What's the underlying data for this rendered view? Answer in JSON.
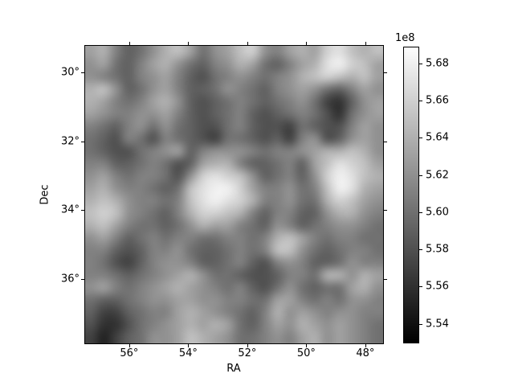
{
  "figure": {
    "background": "#ffffff",
    "border_color": "#000000"
  },
  "chart_data": {
    "type": "heatmap",
    "title": "",
    "xlabel": "RA",
    "ylabel": "Dec",
    "colormap": "gray",
    "grid_on": false,
    "x_range_deg": [
      57.52,
      47.37
    ],
    "y_range_deg": [
      29.21,
      37.89
    ],
    "x_ticks": [
      {
        "value": 56,
        "label": "56°"
      },
      {
        "value": 54,
        "label": "54°"
      },
      {
        "value": 52,
        "label": "52°"
      },
      {
        "value": 50,
        "label": "50°"
      },
      {
        "value": 48,
        "label": "48°"
      }
    ],
    "y_ticks": [
      {
        "value": 30,
        "label": "30°"
      },
      {
        "value": 32,
        "label": "32°"
      },
      {
        "value": 34,
        "label": "34°"
      },
      {
        "value": 36,
        "label": "36°"
      }
    ],
    "colorbar": {
      "offset_label": "1e8",
      "vmin_1e8": 5.5295,
      "vmax_1e8": 5.689,
      "ticks": [
        {
          "value": 5.68,
          "label": "5.68"
        },
        {
          "value": 5.66,
          "label": "5.66"
        },
        {
          "value": 5.64,
          "label": "5.64"
        },
        {
          "value": 5.62,
          "label": "5.62"
        },
        {
          "value": 5.6,
          "label": "5.60"
        },
        {
          "value": 5.58,
          "label": "5.58"
        },
        {
          "value": 5.56,
          "label": "5.56"
        },
        {
          "value": 5.54,
          "label": "5.54"
        }
      ]
    },
    "grid_rows": 24,
    "grid_cols": 24,
    "values_1e8": [
      [
        5.63,
        5.64,
        5.61,
        5.59,
        5.6,
        5.62,
        5.64,
        5.65,
        5.63,
        5.6,
        5.62,
        5.63,
        5.65,
        5.66,
        5.62,
        5.61,
        5.63,
        5.64,
        5.63,
        5.66,
        5.67,
        5.65,
        5.64,
        5.65
      ],
      [
        5.62,
        5.63,
        5.6,
        5.59,
        5.61,
        5.63,
        5.64,
        5.62,
        5.6,
        5.59,
        5.61,
        5.62,
        5.64,
        5.63,
        5.6,
        5.59,
        5.61,
        5.63,
        5.64,
        5.67,
        5.68,
        5.66,
        5.65,
        5.63
      ],
      [
        5.62,
        5.61,
        5.6,
        5.59,
        5.61,
        5.62,
        5.63,
        5.61,
        5.59,
        5.58,
        5.6,
        5.61,
        5.62,
        5.61,
        5.6,
        5.61,
        5.62,
        5.64,
        5.65,
        5.66,
        5.65,
        5.64,
        5.65,
        5.63
      ],
      [
        5.64,
        5.65,
        5.62,
        5.59,
        5.6,
        5.62,
        5.63,
        5.61,
        5.59,
        5.59,
        5.6,
        5.62,
        5.61,
        5.6,
        5.59,
        5.61,
        5.62,
        5.63,
        5.62,
        5.6,
        5.59,
        5.61,
        5.63,
        5.62
      ],
      [
        5.64,
        5.63,
        5.61,
        5.6,
        5.61,
        5.63,
        5.64,
        5.62,
        5.59,
        5.58,
        5.59,
        5.6,
        5.61,
        5.6,
        5.59,
        5.6,
        5.61,
        5.62,
        5.6,
        5.57,
        5.56,
        5.59,
        5.62,
        5.63
      ],
      [
        5.63,
        5.62,
        5.61,
        5.61,
        5.62,
        5.62,
        5.63,
        5.61,
        5.59,
        5.58,
        5.59,
        5.6,
        5.61,
        5.59,
        5.58,
        5.59,
        5.6,
        5.61,
        5.6,
        5.58,
        5.56,
        5.6,
        5.62,
        5.63
      ],
      [
        5.61,
        5.6,
        5.59,
        5.61,
        5.62,
        5.6,
        5.62,
        5.6,
        5.59,
        5.58,
        5.58,
        5.6,
        5.61,
        5.59,
        5.58,
        5.58,
        5.57,
        5.6,
        5.59,
        5.58,
        5.58,
        5.61,
        5.63,
        5.62
      ],
      [
        5.6,
        5.59,
        5.58,
        5.61,
        5.6,
        5.58,
        5.61,
        5.6,
        5.59,
        5.58,
        5.57,
        5.6,
        5.6,
        5.59,
        5.58,
        5.59,
        5.57,
        5.61,
        5.62,
        5.58,
        5.59,
        5.62,
        5.63,
        5.62
      ],
      [
        5.6,
        5.59,
        5.58,
        5.58,
        5.6,
        5.61,
        5.62,
        5.63,
        5.59,
        5.61,
        5.62,
        5.62,
        5.62,
        5.61,
        5.6,
        5.61,
        5.61,
        5.62,
        5.63,
        5.64,
        5.64,
        5.65,
        5.64,
        5.62
      ],
      [
        5.61,
        5.61,
        5.59,
        5.59,
        5.6,
        5.61,
        5.6,
        5.58,
        5.59,
        5.63,
        5.64,
        5.64,
        5.61,
        5.59,
        5.59,
        5.6,
        5.61,
        5.59,
        5.63,
        5.65,
        5.67,
        5.66,
        5.65,
        5.63
      ],
      [
        5.62,
        5.63,
        5.61,
        5.6,
        5.61,
        5.61,
        5.6,
        5.58,
        5.62,
        5.66,
        5.67,
        5.66,
        5.65,
        5.62,
        5.59,
        5.6,
        5.61,
        5.59,
        5.62,
        5.66,
        5.68,
        5.67,
        5.65,
        5.64
      ],
      [
        5.63,
        5.64,
        5.62,
        5.61,
        5.61,
        5.6,
        5.59,
        5.6,
        5.65,
        5.67,
        5.68,
        5.68,
        5.66,
        5.63,
        5.61,
        5.61,
        5.62,
        5.6,
        5.61,
        5.65,
        5.68,
        5.67,
        5.64,
        5.63
      ],
      [
        5.64,
        5.65,
        5.64,
        5.62,
        5.61,
        5.61,
        5.6,
        5.61,
        5.65,
        5.67,
        5.68,
        5.67,
        5.66,
        5.64,
        5.61,
        5.61,
        5.62,
        5.6,
        5.6,
        5.64,
        5.66,
        5.65,
        5.63,
        5.62
      ],
      [
        5.65,
        5.66,
        5.65,
        5.62,
        5.61,
        5.6,
        5.59,
        5.61,
        5.64,
        5.66,
        5.66,
        5.65,
        5.64,
        5.61,
        5.59,
        5.61,
        5.61,
        5.59,
        5.59,
        5.62,
        5.64,
        5.64,
        5.62,
        5.61
      ],
      [
        5.64,
        5.65,
        5.63,
        5.61,
        5.6,
        5.6,
        5.59,
        5.6,
        5.62,
        5.64,
        5.63,
        5.63,
        5.61,
        5.6,
        5.59,
        5.62,
        5.61,
        5.59,
        5.6,
        5.61,
        5.62,
        5.62,
        5.61,
        5.6
      ],
      [
        5.62,
        5.63,
        5.61,
        5.59,
        5.6,
        5.61,
        5.6,
        5.61,
        5.61,
        5.6,
        5.6,
        5.61,
        5.61,
        5.6,
        5.61,
        5.64,
        5.65,
        5.63,
        5.61,
        5.6,
        5.61,
        5.61,
        5.6,
        5.6
      ],
      [
        5.61,
        5.61,
        5.59,
        5.58,
        5.59,
        5.61,
        5.61,
        5.62,
        5.6,
        5.59,
        5.59,
        5.6,
        5.61,
        5.6,
        5.61,
        5.65,
        5.65,
        5.62,
        5.6,
        5.59,
        5.6,
        5.61,
        5.61,
        5.6
      ],
      [
        5.61,
        5.6,
        5.58,
        5.57,
        5.59,
        5.61,
        5.62,
        5.62,
        5.61,
        5.59,
        5.59,
        5.6,
        5.61,
        5.59,
        5.58,
        5.61,
        5.62,
        5.61,
        5.59,
        5.59,
        5.6,
        5.62,
        5.61,
        5.61
      ],
      [
        5.61,
        5.61,
        5.6,
        5.59,
        5.6,
        5.61,
        5.62,
        5.63,
        5.64,
        5.62,
        5.6,
        5.6,
        5.59,
        5.58,
        5.58,
        5.59,
        5.61,
        5.61,
        5.6,
        5.64,
        5.64,
        5.62,
        5.64,
        5.63
      ],
      [
        5.62,
        5.63,
        5.61,
        5.6,
        5.61,
        5.62,
        5.63,
        5.64,
        5.63,
        5.62,
        5.61,
        5.6,
        5.61,
        5.59,
        5.58,
        5.6,
        5.62,
        5.6,
        5.59,
        5.6,
        5.6,
        5.63,
        5.64,
        5.62
      ],
      [
        5.6,
        5.59,
        5.59,
        5.6,
        5.61,
        5.62,
        5.62,
        5.63,
        5.63,
        5.62,
        5.62,
        5.61,
        5.61,
        5.6,
        5.6,
        5.63,
        5.63,
        5.61,
        5.6,
        5.61,
        5.6,
        5.62,
        5.62,
        5.61
      ],
      [
        5.59,
        5.57,
        5.57,
        5.59,
        5.6,
        5.61,
        5.61,
        5.63,
        5.64,
        5.63,
        5.62,
        5.61,
        5.6,
        5.59,
        5.61,
        5.64,
        5.62,
        5.63,
        5.62,
        5.61,
        5.62,
        5.62,
        5.61,
        5.61
      ],
      [
        5.58,
        5.56,
        5.56,
        5.58,
        5.6,
        5.61,
        5.62,
        5.63,
        5.64,
        5.63,
        5.64,
        5.63,
        5.6,
        5.59,
        5.61,
        5.63,
        5.62,
        5.64,
        5.63,
        5.62,
        5.63,
        5.62,
        5.61,
        5.6
      ],
      [
        5.57,
        5.55,
        5.57,
        5.59,
        5.6,
        5.62,
        5.62,
        5.63,
        5.65,
        5.64,
        5.63,
        5.62,
        5.6,
        5.6,
        5.61,
        5.62,
        5.61,
        5.63,
        5.64,
        5.62,
        5.63,
        5.62,
        5.61,
        5.6
      ]
    ]
  }
}
